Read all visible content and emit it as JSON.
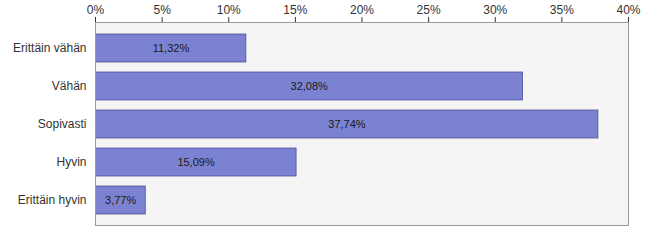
{
  "chart_data": {
    "type": "bar",
    "orientation": "horizontal",
    "categories": [
      "Erittäin vähän",
      "Vähän",
      "Sopivasti",
      "Hyvin",
      "Erittäin hyvin"
    ],
    "values": [
      11.32,
      32.08,
      37.74,
      15.09,
      3.77
    ],
    "value_labels": [
      "11,32%",
      "32,08%",
      "37,74%",
      "15,09%",
      "3,77%"
    ],
    "data_labels": true,
    "color": "#7b82d2",
    "xlim": [
      0,
      40
    ],
    "xticks": [
      {
        "value": 0,
        "label": "0%"
      },
      {
        "value": 5,
        "label": "5%"
      },
      {
        "value": 10,
        "label": "10%"
      },
      {
        "value": 15,
        "label": "15%"
      },
      {
        "value": 20,
        "label": "20%"
      },
      {
        "value": 25,
        "label": "25%"
      },
      {
        "value": 30,
        "label": "30%"
      },
      {
        "value": 35,
        "label": "35%"
      },
      {
        "value": 40,
        "label": "40%"
      }
    ],
    "grid": true
  }
}
